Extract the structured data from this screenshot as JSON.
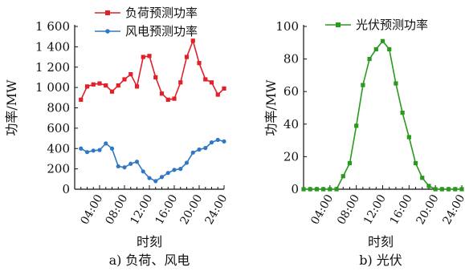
{
  "chart_data": [
    {
      "type": "line",
      "caption": "a) 负荷、风电",
      "xlabel": "时刻",
      "ylabel": "功率/MW",
      "xlim": [
        0,
        24
      ],
      "ylim": [
        0,
        1600
      ],
      "yticks": [
        "0",
        "200",
        "400",
        "600",
        "800",
        "1 000",
        "1 200",
        "1 400",
        "1 600"
      ],
      "xticks": [
        "04:00",
        "08:00",
        "12:00",
        "16:00",
        "20:00",
        "24:00"
      ],
      "legend_position": "top-center",
      "series": [
        {
          "name": "负荷预测功率",
          "color": "#e0202a",
          "marker": "square",
          "x": [
            1,
            2,
            3,
            4,
            5,
            6,
            7,
            8,
            9,
            10,
            11,
            12,
            13,
            14,
            15,
            16,
            17,
            18,
            19,
            20,
            21,
            22,
            23,
            24
          ],
          "values": [
            880,
            1010,
            1030,
            1040,
            1020,
            960,
            1020,
            1080,
            1130,
            1010,
            1300,
            1310,
            1100,
            940,
            880,
            890,
            1050,
            1300,
            1460,
            1240,
            1080,
            1050,
            930,
            990
          ]
        },
        {
          "name": "风电预测功率",
          "color": "#2f78c4",
          "marker": "circle",
          "x": [
            1,
            2,
            3,
            4,
            5,
            6,
            7,
            8,
            9,
            10,
            11,
            12,
            13,
            14,
            15,
            16,
            17,
            18,
            19,
            20,
            21,
            22,
            23,
            24
          ],
          "values": [
            400,
            365,
            380,
            385,
            450,
            400,
            225,
            215,
            250,
            270,
            175,
            110,
            80,
            120,
            160,
            190,
            200,
            260,
            360,
            390,
            405,
            460,
            485,
            470
          ]
        }
      ]
    },
    {
      "type": "line",
      "caption": "b) 光伏",
      "xlabel": "时刻",
      "ylabel": "功率/MW",
      "xlim": [
        0,
        24
      ],
      "ylim": [
        0,
        100
      ],
      "yticks": [
        "0",
        "20",
        "40",
        "60",
        "80",
        "100"
      ],
      "xticks": [
        "04:00",
        "08:00",
        "12:00",
        "16:00",
        "20:00",
        "24:00"
      ],
      "legend_position": "top-center",
      "series": [
        {
          "name": "光伏预测功率",
          "color": "#2a9a1e",
          "marker": "square",
          "x": [
            0,
            1,
            2,
            3,
            4,
            5,
            6,
            7,
            8,
            9,
            10,
            11,
            12,
            13,
            14,
            15,
            16,
            17,
            18,
            19,
            20,
            21,
            22,
            23,
            24
          ],
          "values": [
            0,
            0,
            0,
            0,
            0,
            0,
            8,
            16,
            39,
            64,
            80,
            86,
            91,
            86,
            65,
            47,
            32,
            16,
            7,
            2,
            0,
            0,
            0,
            0,
            0
          ]
        }
      ]
    }
  ]
}
